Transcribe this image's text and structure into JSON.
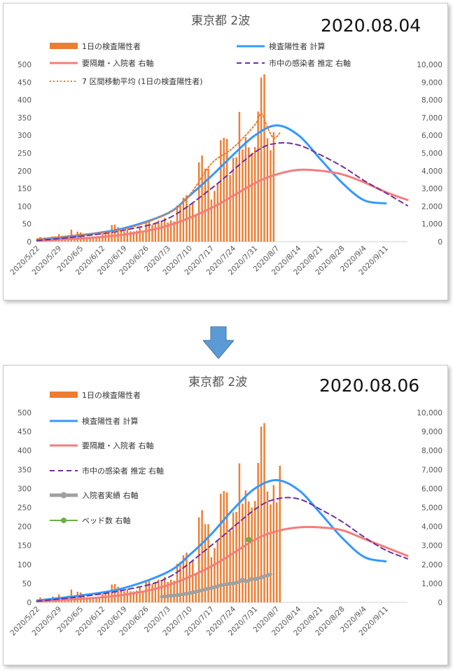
{
  "chart_data": [
    {
      "type": "bar+line",
      "title": "東京都 2波",
      "date_stamp": "2020.08.04",
      "x_ticks": [
        "2020/5/22",
        "2020/5/29",
        "2020/6/5",
        "2020/6/12",
        "2020/6/19",
        "2020/6/26",
        "2020/7/3",
        "2020/7/10",
        "2020/7/17",
        "2020/7/24",
        "2020/7/31",
        "2020/8/7",
        "2020/8/14",
        "2020/8/21",
        "2020/8/28",
        "2020/9/4",
        "2020/9/11"
      ],
      "y_left_ticks": [
        "0",
        "50",
        "100",
        "150",
        "200",
        "250",
        "300",
        "350",
        "400",
        "450",
        "500"
      ],
      "y_right_ticks": [
        "0",
        "1,000",
        "2,000",
        "3,000",
        "4,000",
        "5,000",
        "6,000",
        "7,000",
        "8,000",
        "9,000",
        "10,000"
      ],
      "ylim_left": [
        0,
        500
      ],
      "ylim_right": [
        0,
        10000
      ],
      "legend_placement": "top, three-column grid",
      "grid": false,
      "series": [
        {
          "name": "1日の検査陽性者",
          "kind": "bar",
          "axis": "left",
          "color": "#ed7d31",
          "x_start": "2020/5/22",
          "values": [
            5,
            13,
            8,
            10,
            9,
            15,
            13,
            21,
            10,
            10,
            18,
            34,
            12,
            28,
            26,
            20,
            13,
            12,
            14,
            12,
            13,
            22,
            25,
            27,
            47,
            48,
            41,
            35,
            29,
            35,
            29,
            29,
            31,
            39,
            26,
            55,
            57,
            48,
            54,
            60,
            58,
            67,
            54,
            60,
            57,
            102,
            107,
            124,
            131,
            106,
            111,
            75,
            224,
            243,
            206,
            206,
            119,
            143,
            165,
            286,
            293,
            290,
            188,
            237,
            238,
            366,
            260,
            295,
            266,
            250,
            267,
            367,
            463,
            472,
            292,
            258,
            309
          ]
        },
        {
          "name": "検査陽性者 計算",
          "kind": "line",
          "axis": "left",
          "color": "#3399ff",
          "width": 3,
          "x": [
            "2020/5/22",
            "2020/6/5",
            "2020/6/19",
            "2020/7/3",
            "2020/7/10",
            "2020/7/17",
            "2020/7/24",
            "2020/7/31",
            "2020/8/7",
            "2020/8/14",
            "2020/8/21",
            "2020/8/28",
            "2020/9/4",
            "2020/9/11"
          ],
          "values": [
            5,
            18,
            38,
            80,
            130,
            185,
            245,
            300,
            328,
            300,
            233,
            166,
            117,
            108
          ]
        },
        {
          "name": "要隔離・入院者 右軸",
          "kind": "line",
          "axis": "right",
          "color": "#f47c7c",
          "width": 3,
          "x": [
            "2020/5/22",
            "2020/6/5",
            "2020/6/19",
            "2020/7/3",
            "2020/7/17",
            "2020/7/31",
            "2020/8/7",
            "2020/8/14",
            "2020/8/21",
            "2020/8/28",
            "2020/9/4",
            "2020/9/11",
            "2020/9/18"
          ],
          "values": [
            50,
            180,
            400,
            900,
            1900,
            3300,
            3800,
            4050,
            4000,
            3800,
            3350,
            2800,
            2350
          ]
        },
        {
          "name": "市中の感染者 推定 右軸",
          "kind": "line",
          "axis": "right",
          "color": "#7030a0",
          "dash": "7 5",
          "width": 2,
          "x": [
            "2020/5/22",
            "2020/6/5",
            "2020/6/19",
            "2020/7/3",
            "2020/7/17",
            "2020/7/31",
            "2020/8/7",
            "2020/8/14",
            "2020/8/21",
            "2020/8/28",
            "2020/9/4",
            "2020/9/11",
            "2020/9/18"
          ],
          "values": [
            60,
            300,
            650,
            1300,
            3000,
            5050,
            5550,
            5450,
            4900,
            4250,
            3450,
            2750,
            2030
          ]
        },
        {
          "name": "7 区間移動平均 (1日の検査陽性者)",
          "kind": "line",
          "axis": "left",
          "color": "#ed7d31",
          "dash": "2 3",
          "width": 2,
          "x": [
            "2020/5/22",
            "2020/6/5",
            "2020/6/19",
            "2020/7/3",
            "2020/7/10",
            "2020/7/17",
            "2020/7/24",
            "2020/7/31",
            "2020/8/2",
            "2020/8/4",
            "2020/8/6",
            "2020/8/8"
          ],
          "values": [
            8,
            20,
            35,
            80,
            132,
            220,
            265,
            330,
            362,
            323,
            292,
            307
          ]
        }
      ]
    },
    {
      "type": "bar+line",
      "title": "東京都 2波",
      "date_stamp": "2020.08.06",
      "x_ticks": [
        "2020/5/22",
        "2020/5/29",
        "2020/6/5",
        "2020/6/12",
        "2020/6/19",
        "2020/6/26",
        "2020/7/3",
        "2020/7/10",
        "2020/7/17",
        "2020/7/24",
        "2020/7/31",
        "2020/8/7",
        "2020/8/14",
        "2020/8/21",
        "2020/8/28",
        "2020/9/4",
        "2020/9/11"
      ],
      "y_left_ticks": [
        "0",
        "50",
        "100",
        "150",
        "200",
        "250",
        "300",
        "350",
        "400",
        "450",
        "500"
      ],
      "y_right_ticks": [
        "0",
        "1,000",
        "2,000",
        "3,000",
        "4,000",
        "5,000",
        "6,000",
        "7,000",
        "8,000",
        "9,000",
        "10,000"
      ],
      "ylim_left": [
        0,
        500
      ],
      "ylim_right": [
        0,
        10000
      ],
      "legend_placement": "top-left, single column",
      "grid": false,
      "series": [
        {
          "name": "1日の検査陽性者",
          "kind": "bar",
          "axis": "left",
          "color": "#ed7d31",
          "x_start": "2020/5/22",
          "values": [
            5,
            13,
            8,
            10,
            9,
            15,
            13,
            21,
            10,
            10,
            18,
            34,
            12,
            28,
            26,
            20,
            13,
            12,
            14,
            12,
            13,
            22,
            25,
            27,
            47,
            48,
            41,
            35,
            29,
            35,
            29,
            29,
            31,
            39,
            26,
            55,
            57,
            48,
            54,
            60,
            58,
            67,
            54,
            60,
            57,
            102,
            107,
            124,
            131,
            106,
            111,
            75,
            224,
            243,
            206,
            206,
            119,
            143,
            165,
            286,
            293,
            290,
            188,
            237,
            238,
            366,
            260,
            295,
            266,
            250,
            267,
            367,
            463,
            472,
            292,
            258,
            309,
            263,
            360
          ]
        },
        {
          "name": "検査陽性者 計算",
          "kind": "line",
          "axis": "left",
          "color": "#3399ff",
          "width": 3,
          "x": [
            "2020/5/22",
            "2020/6/5",
            "2020/6/19",
            "2020/7/3",
            "2020/7/10",
            "2020/7/17",
            "2020/7/24",
            "2020/7/31",
            "2020/8/7",
            "2020/8/14",
            "2020/8/21",
            "2020/8/28",
            "2020/9/4",
            "2020/9/11"
          ],
          "values": [
            5,
            18,
            38,
            80,
            125,
            180,
            245,
            300,
            322,
            296,
            235,
            170,
            120,
            108
          ]
        },
        {
          "name": "要隔離・入院者 右軸",
          "kind": "line",
          "axis": "right",
          "color": "#f47c7c",
          "width": 3,
          "x": [
            "2020/5/22",
            "2020/6/5",
            "2020/6/19",
            "2020/7/3",
            "2020/7/17",
            "2020/7/31",
            "2020/8/7",
            "2020/8/14",
            "2020/8/21",
            "2020/8/28",
            "2020/9/4",
            "2020/9/11",
            "2020/9/18"
          ],
          "values": [
            50,
            180,
            400,
            900,
            1900,
            3300,
            3750,
            3950,
            3950,
            3800,
            3350,
            2900,
            2450
          ]
        },
        {
          "name": "市中の感染者 推定 右軸",
          "kind": "line",
          "axis": "right",
          "color": "#7030a0",
          "dash": "7 5",
          "width": 2,
          "x": [
            "2020/5/22",
            "2020/6/5",
            "2020/6/19",
            "2020/7/3",
            "2020/7/17",
            "2020/7/31",
            "2020/8/7",
            "2020/8/14",
            "2020/8/21",
            "2020/8/28",
            "2020/9/4",
            "2020/9/11",
            "2020/9/18"
          ],
          "values": [
            60,
            300,
            650,
            1300,
            3000,
            4900,
            5450,
            5450,
            4900,
            4250,
            3450,
            2750,
            2300
          ]
        },
        {
          "name": "入院者実績 右軸",
          "kind": "line",
          "axis": "right",
          "color": "#a0a0a0",
          "width": 5,
          "x_start": "2020/7/1",
          "values": [
            300,
            310,
            330,
            350,
            360,
            380,
            400,
            430,
            460,
            480,
            520,
            560,
            600,
            640,
            680,
            720,
            760,
            800,
            850,
            900,
            930,
            960,
            980,
            1000,
            1040,
            1080,
            1200,
            1100,
            1150,
            1250,
            1200,
            1280,
            1300,
            1380,
            1420,
            1480
          ]
        },
        {
          "name": "ベッド数 右軸",
          "kind": "point",
          "axis": "right",
          "color": "#70ad47",
          "x": [
            "2020/7/29"
          ],
          "values": [
            3300
          ]
        }
      ]
    }
  ]
}
